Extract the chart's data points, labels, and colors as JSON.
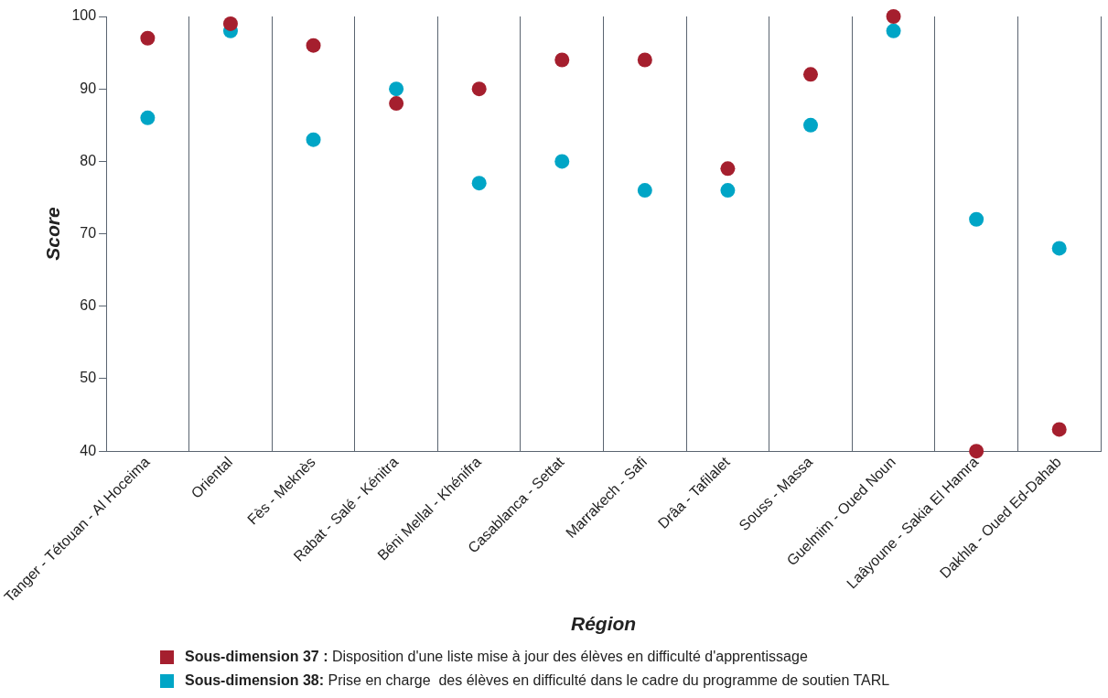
{
  "chart_data": {
    "type": "scatter",
    "xlabel": "Région",
    "ylabel": "Score",
    "categories": [
      "Tanger - Tétouan - Al Hoceima",
      "Oriental",
      "Fès - Meknès",
      "Rabat - Salé - Kénitra",
      "Béni Mellal - Khénifra",
      "Casablanca - Settat",
      "Marrakech - Safi",
      "Drâa - Tafilalet",
      "Souss - Massa",
      "Guelmim - Oued Noun",
      "Laâyoune - Sakia El Hamra",
      "Dakhla - Oued Ed-Dahab"
    ],
    "series": [
      {
        "name": "Sous-dimension 37 : Disposition d'une liste mise à jour des élèves en difficulté d'apprentissage",
        "color": "#a51f2e",
        "values": [
          97,
          99,
          96,
          88,
          90,
          94,
          94,
          79,
          92,
          100,
          40,
          43
        ]
      },
      {
        "name": "Sous-dimension 38: Prise en charge  des élèves en difficulté dans le cadre du programme de soutien TARL",
        "color": "#00a5c6",
        "values": [
          86,
          98,
          83,
          90,
          77,
          80,
          76,
          76,
          85,
          98,
          72,
          68
        ]
      }
    ],
    "ylim": [
      40,
      100
    ],
    "yticks": [
      40,
      50,
      60,
      70,
      80,
      90,
      100
    ],
    "grid": "x",
    "legend": "bottom",
    "marker": "circle"
  }
}
